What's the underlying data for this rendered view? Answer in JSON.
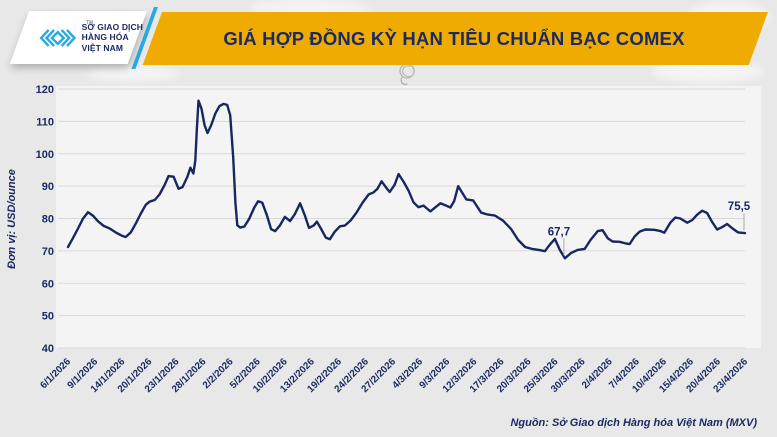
{
  "header": {
    "logo": {
      "lines": [
        "SỞ GIAO DỊCH",
        "HÀNG HÓA",
        "VIỆT NAM"
      ],
      "tm": "TM"
    },
    "title": "GIÁ HỢP ĐỒNG KỲ HẠN TIÊU CHUẨN BẠC COMEX"
  },
  "colors": {
    "banner_gold": "#f0ab00",
    "navy": "#1b2a63",
    "brand_cyan": "#29a9e2",
    "line_navy": "#17275f",
    "page_bg": "#e8e8e8",
    "plot_bg": "#f4f4f4",
    "gridline": "#d9d9d9"
  },
  "chart_data": {
    "type": "line",
    "title": "GIÁ HỢP ĐỒNG KỲ HẠN TIÊU CHUẨN BẠC COMEX",
    "ylabel": "Đơn vị: USD/ounce",
    "unit": "USD/ounce",
    "ylim": [
      40,
      120
    ],
    "y_ticks": [
      120,
      110,
      100,
      90,
      80,
      70,
      60,
      50,
      40
    ],
    "grid": "horizontal",
    "legend": "none",
    "x_encoding": "tick_index: 0 = 6/1/2026, 25 = 23/4/2026",
    "x_tick_labels": [
      "6/1/2026",
      "9/1/2026",
      "14/1/2026",
      "20/1/2026",
      "23/1/2026",
      "28/1/2026",
      "2/2/2026",
      "5/2/2026",
      "10/2/2026",
      "13/2/2026",
      "19/2/2026",
      "24/2/2026",
      "27/2/2026",
      "4/3/2026",
      "9/3/2026",
      "12/3/2026",
      "17/3/2026",
      "20/3/2026",
      "25/3/2026",
      "30/3/2026",
      "2/4/2026",
      "7/4/2026",
      "10/4/2026",
      "15/4/2026",
      "20/4/2026",
      "23/4/2026"
    ],
    "series": [
      {
        "name": "Giá hợp đồng kỳ hạn tiêu chuẩn bạc COMEX",
        "color": "#17275f",
        "points": [
          [
            0,
            71.2
          ],
          [
            0.18,
            73.9
          ],
          [
            0.37,
            76.9
          ],
          [
            0.55,
            79.9
          ],
          [
            0.74,
            81.9
          ],
          [
            0.92,
            80.9
          ],
          [
            1.1,
            79.2
          ],
          [
            1.32,
            77.7
          ],
          [
            1.54,
            76.9
          ],
          [
            1.76,
            75.7
          ],
          [
            1.99,
            74.7
          ],
          [
            2.13,
            74.3
          ],
          [
            2.32,
            75.7
          ],
          [
            2.5,
            78.4
          ],
          [
            2.68,
            81.4
          ],
          [
            2.87,
            84.2
          ],
          [
            3.01,
            85.2
          ],
          [
            3.2,
            85.7
          ],
          [
            3.38,
            87.4
          ],
          [
            3.57,
            90.4
          ],
          [
            3.71,
            93.1
          ],
          [
            3.9,
            92.9
          ],
          [
            4.08,
            89.2
          ],
          [
            4.23,
            89.7
          ],
          [
            4.41,
            92.9
          ],
          [
            4.52,
            95.7
          ],
          [
            4.63,
            93.9
          ],
          [
            4.7,
            97.9
          ],
          [
            4.76,
            107.9
          ],
          [
            4.82,
            116.4
          ],
          [
            4.93,
            113.9
          ],
          [
            5.04,
            108.9
          ],
          [
            5.15,
            106.4
          ],
          [
            5.29,
            108.9
          ],
          [
            5.44,
            112.4
          ],
          [
            5.59,
            114.7
          ],
          [
            5.74,
            115.4
          ],
          [
            5.88,
            115.1
          ],
          [
            5.99,
            111.9
          ],
          [
            6.1,
            98.9
          ],
          [
            6.18,
            84.9
          ],
          [
            6.25,
            77.9
          ],
          [
            6.36,
            77.2
          ],
          [
            6.51,
            77.5
          ],
          [
            6.69,
            79.9
          ],
          [
            6.88,
            83.4
          ],
          [
            7.02,
            85.3
          ],
          [
            7.17,
            84.9
          ],
          [
            7.35,
            80.9
          ],
          [
            7.5,
            76.7
          ],
          [
            7.65,
            76.1
          ],
          [
            7.83,
            77.9
          ],
          [
            8.01,
            80.5
          ],
          [
            8.2,
            79.2
          ],
          [
            8.38,
            81.4
          ],
          [
            8.57,
            84.7
          ],
          [
            8.75,
            80.9
          ],
          [
            8.9,
            77.1
          ],
          [
            9.08,
            77.9
          ],
          [
            9.19,
            79
          ],
          [
            9.34,
            76.9
          ],
          [
            9.52,
            74.1
          ],
          [
            9.67,
            73.6
          ],
          [
            9.85,
            75.9
          ],
          [
            10.04,
            77.6
          ],
          [
            10.22,
            77.8
          ],
          [
            10.44,
            79.4
          ],
          [
            10.66,
            81.9
          ],
          [
            10.88,
            84.9
          ],
          [
            11.1,
            87.4
          ],
          [
            11.29,
            88.1
          ],
          [
            11.43,
            89.2
          ],
          [
            11.58,
            91.5
          ],
          [
            11.76,
            89.4
          ],
          [
            11.88,
            88.2
          ],
          [
            12.06,
            90.4
          ],
          [
            12.21,
            93.7
          ],
          [
            12.39,
            91.4
          ],
          [
            12.57,
            88.7
          ],
          [
            12.76,
            85
          ],
          [
            12.94,
            83.5
          ],
          [
            13.13,
            84
          ],
          [
            13.38,
            82.2
          ],
          [
            13.57,
            83.5
          ],
          [
            13.75,
            84.7
          ],
          [
            13.93,
            84.1
          ],
          [
            14.12,
            83.4
          ],
          [
            14.26,
            85.4
          ],
          [
            14.41,
            90
          ],
          [
            14.56,
            87.9
          ],
          [
            14.71,
            85.9
          ],
          [
            14.96,
            85.6
          ],
          [
            15.26,
            81.8
          ],
          [
            15.51,
            81.2
          ],
          [
            15.77,
            80.9
          ],
          [
            16.07,
            79.3
          ],
          [
            16.36,
            76.8
          ],
          [
            16.62,
            73.4
          ],
          [
            16.88,
            71.2
          ],
          [
            17.13,
            70.6
          ],
          [
            17.39,
            70.3
          ],
          [
            17.61,
            69.9
          ],
          [
            17.79,
            71.9
          ],
          [
            17.98,
            73.7
          ],
          [
            18.16,
            70.3
          ],
          [
            18.35,
            67.7
          ],
          [
            18.57,
            69.3
          ],
          [
            18.82,
            70.3
          ],
          [
            19.08,
            70.6
          ],
          [
            19.3,
            73.4
          ],
          [
            19.56,
            76.1
          ],
          [
            19.74,
            76.4
          ],
          [
            19.93,
            73.9
          ],
          [
            20.11,
            72.9
          ],
          [
            20.37,
            72.8
          ],
          [
            20.59,
            72.3
          ],
          [
            20.74,
            72.1
          ],
          [
            20.92,
            74.4
          ],
          [
            21.1,
            75.9
          ],
          [
            21.32,
            76.6
          ],
          [
            21.65,
            76.5
          ],
          [
            21.88,
            76.1
          ],
          [
            22.02,
            75.6
          ],
          [
            22.24,
            78.7
          ],
          [
            22.43,
            80.3
          ],
          [
            22.61,
            80
          ],
          [
            22.87,
            78.7
          ],
          [
            23.05,
            79.5
          ],
          [
            23.24,
            81.2
          ],
          [
            23.42,
            82.4
          ],
          [
            23.6,
            81.7
          ],
          [
            23.79,
            78.9
          ],
          [
            23.97,
            76.6
          ],
          [
            24.15,
            77.3
          ],
          [
            24.34,
            78.3
          ],
          [
            24.56,
            76.8
          ],
          [
            24.74,
            75.7
          ],
          [
            25,
            75.5
          ]
        ]
      }
    ],
    "annotations": [
      {
        "text": "67,7",
        "value": 67.7,
        "tick_index": 18.35
      },
      {
        "text": "75,5",
        "value": 75.5,
        "tick_index": 25
      }
    ]
  },
  "footer": {
    "source": "Nguồn: Sở Giao dịch Hàng hóa Việt Nam (MXV)"
  }
}
